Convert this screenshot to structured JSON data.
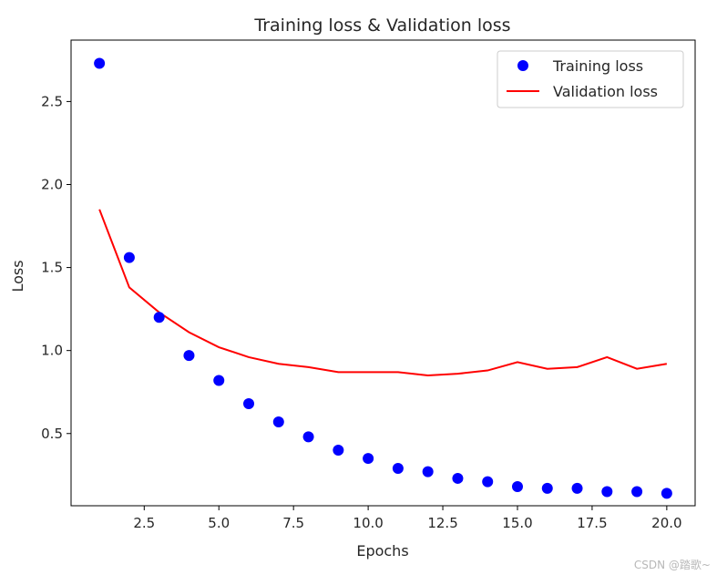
{
  "chart_data": {
    "type": "scatter+line",
    "title": "Training loss & Validation loss",
    "xlabel": "Epochs",
    "ylabel": "Loss",
    "xlim": [
      0.05,
      20.95
    ],
    "ylim": [
      0.065,
      2.87
    ],
    "xticks": [
      2.5,
      5.0,
      7.5,
      10.0,
      12.5,
      15.0,
      17.5,
      20.0
    ],
    "xtick_labels": [
      "2.5",
      "5.0",
      "7.5",
      "10.0",
      "12.5",
      "15.0",
      "17.5",
      "20.0"
    ],
    "yticks": [
      0.5,
      1.0,
      1.5,
      2.0,
      2.5
    ],
    "ytick_labels": [
      "0.5",
      "1.0",
      "1.5",
      "2.0",
      "2.5"
    ],
    "grid": false,
    "legend_position": "top-right",
    "series": [
      {
        "name": "Training loss",
        "kind": "scatter",
        "color": "#0000ff",
        "x": [
          1,
          2,
          3,
          4,
          5,
          6,
          7,
          8,
          9,
          10,
          11,
          12,
          13,
          14,
          15,
          16,
          17,
          18,
          19,
          20
        ],
        "y": [
          2.73,
          1.56,
          1.2,
          0.97,
          0.82,
          0.68,
          0.57,
          0.48,
          0.4,
          0.35,
          0.29,
          0.27,
          0.23,
          0.21,
          0.18,
          0.17,
          0.17,
          0.15,
          0.15,
          0.14
        ]
      },
      {
        "name": "Validation loss",
        "kind": "line",
        "color": "#ff0000",
        "x": [
          1,
          2,
          3,
          4,
          5,
          6,
          7,
          8,
          9,
          10,
          11,
          12,
          13,
          14,
          15,
          16,
          17,
          18,
          19,
          20
        ],
        "y": [
          1.85,
          1.38,
          1.23,
          1.11,
          1.02,
          0.96,
          0.92,
          0.9,
          0.87,
          0.87,
          0.87,
          0.85,
          0.86,
          0.88,
          0.93,
          0.89,
          0.9,
          0.96,
          0.89,
          0.92
        ]
      }
    ]
  },
  "watermark": "CSDN @踏歌~"
}
